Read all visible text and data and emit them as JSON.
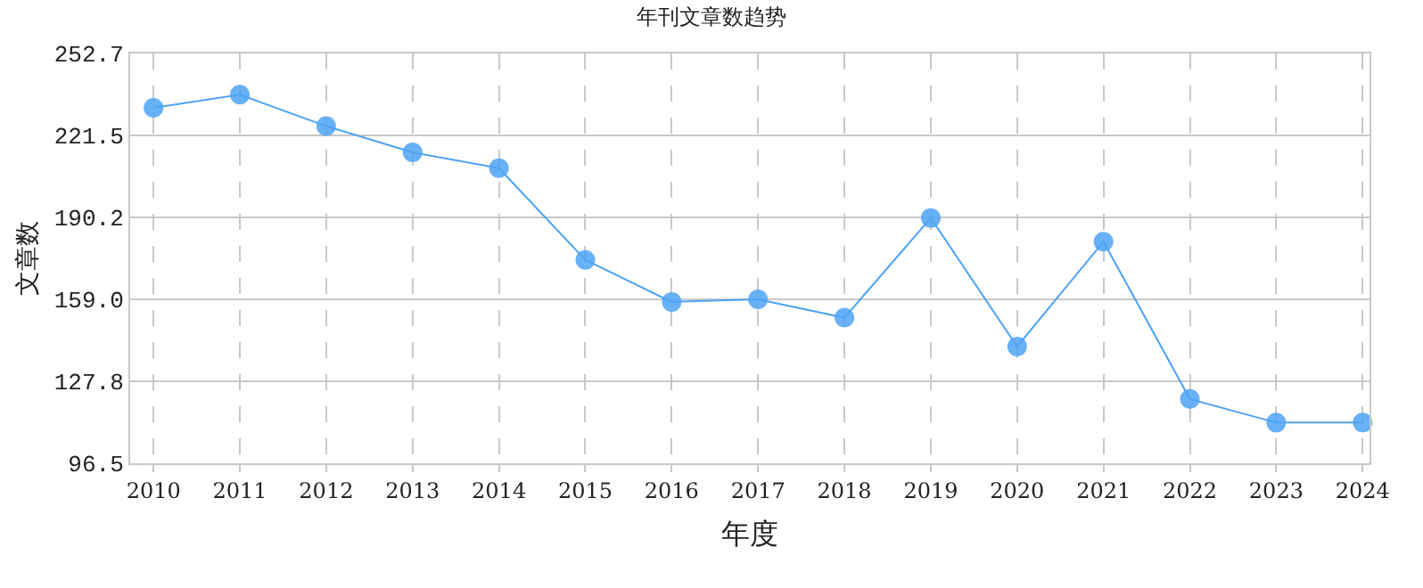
{
  "chart_data": {
    "type": "line",
    "title": "年刊文章数趋势",
    "xlabel": "年度",
    "ylabel": "文章数",
    "categories": [
      "2010",
      "2011",
      "2012",
      "2013",
      "2014",
      "2015",
      "2016",
      "2017",
      "2018",
      "2019",
      "2020",
      "2021",
      "2022",
      "2023",
      "2024"
    ],
    "series": [
      {
        "color": "#4da3f5",
        "values": [
          232,
          237,
          225,
          215,
          209,
          174,
          158,
          159,
          152,
          190,
          141,
          181,
          121,
          112,
          112
        ]
      }
    ],
    "ylim": [
      96.5,
      252.7
    ],
    "yticks": [
      96.5,
      127.8,
      {
        "value": 159,
        "label": "159.0"
      },
      190.2,
      221.5,
      252.7
    ],
    "grid": true,
    "marker": "circle",
    "line_style": "solid"
  }
}
